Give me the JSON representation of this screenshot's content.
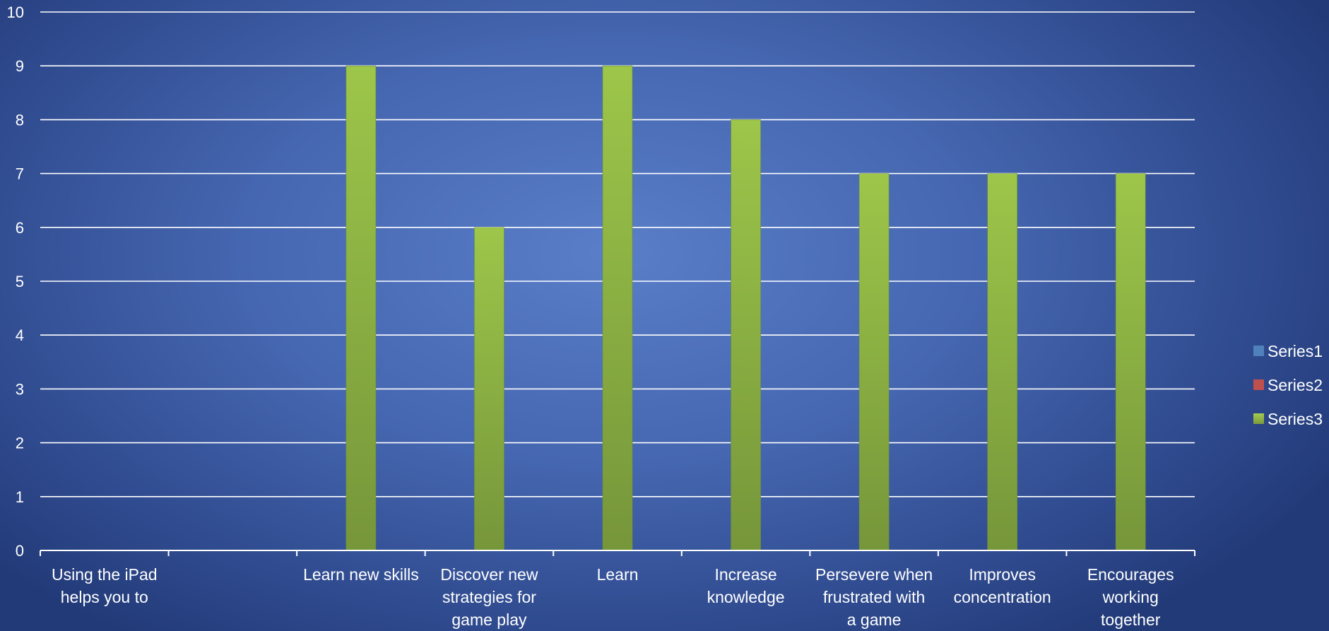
{
  "chart_data": {
    "type": "bar",
    "title": "",
    "xlabel": "",
    "ylabel": "",
    "ylim": [
      0,
      10
    ],
    "yticks": [
      "0",
      "1",
      "2",
      "3",
      "4",
      "5",
      "6",
      "7",
      "8",
      "9",
      "10"
    ],
    "grid": true,
    "legend_position": "right",
    "categories": [
      [
        "Using the iPad",
        "helps you to"
      ],
      [],
      [
        "Learn new skills"
      ],
      [
        "Discover new",
        "strategies for",
        "game play"
      ],
      [
        "Learn"
      ],
      [
        "Increase",
        "knowledge"
      ],
      [
        "Persevere when",
        "frustrated with",
        "a game"
      ],
      [
        "Improves",
        "concentration"
      ],
      [
        "Encourages",
        "working",
        "together"
      ]
    ],
    "series": [
      {
        "name": "Series1",
        "color": "#4f81bd",
        "values": [
          null,
          null,
          null,
          null,
          null,
          null,
          null,
          null,
          null
        ]
      },
      {
        "name": "Series2",
        "color": "#c0504d",
        "values": [
          null,
          null,
          null,
          null,
          null,
          null,
          null,
          null,
          null
        ]
      },
      {
        "name": "Series3",
        "color": "#9bbb59",
        "values": [
          null,
          null,
          9,
          6,
          9,
          8,
          7,
          7,
          7
        ]
      }
    ]
  }
}
